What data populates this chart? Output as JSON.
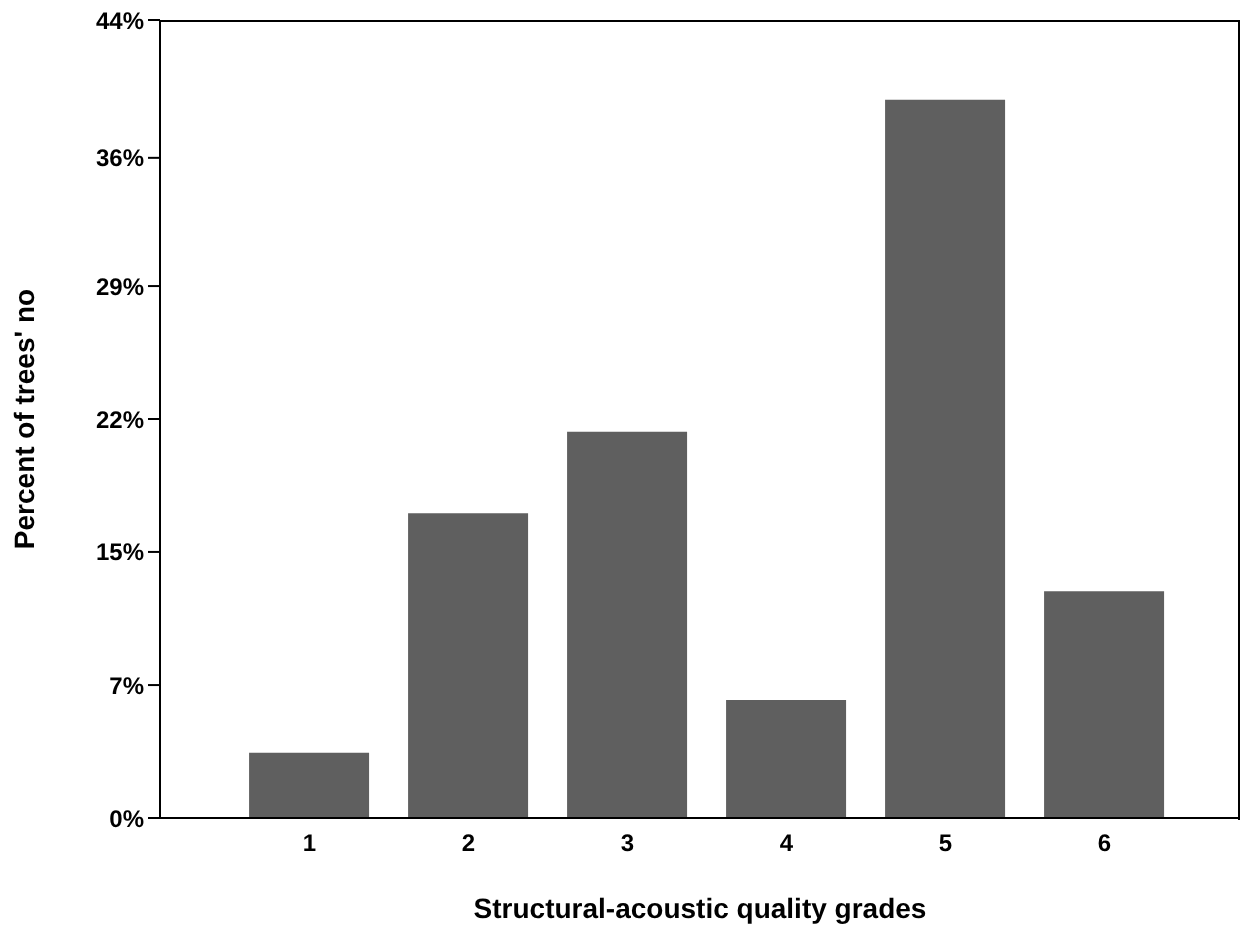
{
  "chart_data": {
    "type": "bar",
    "xlabel": "Structural-acoustic quality grades",
    "ylabel": "Percent of trees' no",
    "categories": [
      "1",
      "2",
      "3",
      "4",
      "5",
      "6"
    ],
    "values": [
      3.6,
      16.8,
      21.3,
      6.5,
      39.6,
      12.5
    ],
    "color": "#5f5f5f",
    "ylim": [
      0,
      44
    ],
    "yticks": [
      {
        "value": 0,
        "label": "0%"
      },
      {
        "value": 7.33,
        "label": "7%"
      },
      {
        "value": 14.67,
        "label": "15%"
      },
      {
        "value": 22,
        "label": "22%"
      },
      {
        "value": 29.33,
        "label": "29%"
      },
      {
        "value": 36.4,
        "label": "36%"
      },
      {
        "value": 44,
        "label": "44%"
      }
    ],
    "grid": false,
    "legend": false
  }
}
